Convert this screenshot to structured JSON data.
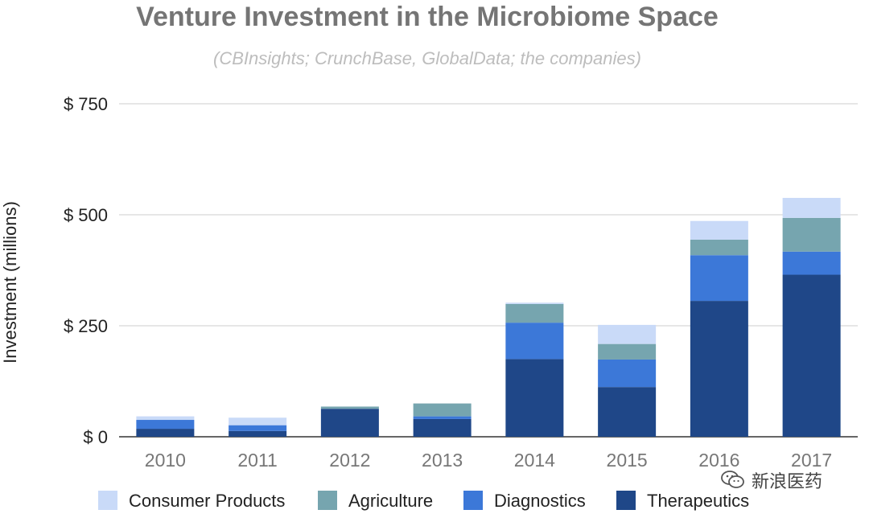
{
  "chart_data": {
    "type": "bar",
    "stacked": true,
    "title": "Venture Investment in the Microbiome Space",
    "subtitle": "(CBInsights; CrunchBase, GlobalData; the companies)",
    "ylabel": "Investment (millions)",
    "xlabel": "",
    "ylim": [
      0,
      750
    ],
    "y_ticks": [
      {
        "value": 0,
        "label": "$ 0"
      },
      {
        "value": 250,
        "label": "$ 250"
      },
      {
        "value": 500,
        "label": "$ 500"
      },
      {
        "value": 750,
        "label": "$ 750"
      }
    ],
    "grid": true,
    "legend_position": "bottom",
    "categories": [
      "2010",
      "2011",
      "2012",
      "2013",
      "2014",
      "2015",
      "2016",
      "2017"
    ],
    "series": [
      {
        "name": "Therapeutics",
        "color": "#1f4788",
        "values": [
          18,
          13,
          63,
          40,
          175,
          112,
          306,
          365
        ]
      },
      {
        "name": "Diagnostics",
        "color": "#3c78d8",
        "values": [
          20,
          13,
          0,
          6,
          82,
          62,
          103,
          52
        ]
      },
      {
        "name": "Agriculture",
        "color": "#76a5af",
        "values": [
          0,
          0,
          5,
          29,
          42,
          35,
          35,
          76
        ]
      },
      {
        "name": "Consumer Products",
        "color": "#c9daf8",
        "values": [
          8,
          17,
          0,
          0,
          3,
          43,
          42,
          45
        ]
      }
    ],
    "legend_order": [
      "Consumer Products",
      "Agriculture",
      "Diagnostics",
      "Therapeutics"
    ]
  },
  "watermark": {
    "text": "新浪医药",
    "icon": "wechat-icon"
  }
}
